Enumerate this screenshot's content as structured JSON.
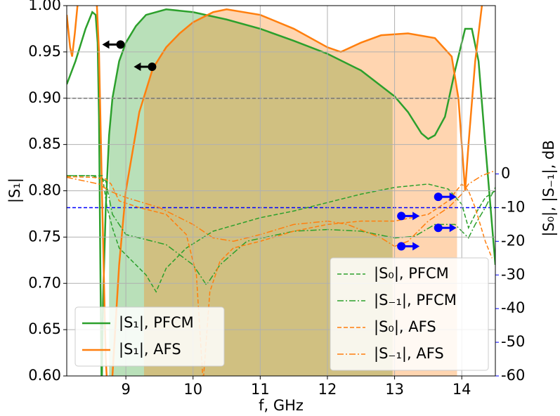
{
  "chart_data": {
    "type": "line",
    "x_label": "f, GHz",
    "y_label": "|S₁|",
    "y2_label": "|S₀|, |S₋₁|, dB",
    "xlim": [
      8.12,
      14.5
    ],
    "ylim": [
      0.6,
      1.0
    ],
    "y2lim": [
      -60,
      50
    ],
    "xticks": [
      9,
      10,
      11,
      12,
      13,
      14
    ],
    "yticks": [
      {
        "value": 0.6,
        "label": "0.60"
      },
      {
        "value": 0.65,
        "label": "0.65"
      },
      {
        "value": 0.7,
        "label": "0.70"
      },
      {
        "value": 0.75,
        "label": "0.75"
      },
      {
        "value": 0.8,
        "label": "0.80"
      },
      {
        "value": 0.85,
        "label": "0.85"
      },
      {
        "value": 0.9,
        "label": "0.90"
      },
      {
        "value": 0.95,
        "label": "0.95"
      },
      {
        "value": 1.0,
        "label": "1.00"
      }
    ],
    "y2ticks": [
      -60,
      -50,
      -40,
      -30,
      -20,
      -10,
      0
    ],
    "y2_color": "#0000ff",
    "grid": true,
    "hlines": [
      {
        "value": 0.9,
        "color": "#000000"
      },
      {
        "value": -10,
        "axis": "y2",
        "color": "#0000ff"
      }
    ],
    "series": [
      {
        "name": "|S₁|, PFCM",
        "color": "#2ca02c",
        "linestyle": "solid",
        "fill_x": [
          8.75,
          12.97
        ],
        "x": [
          8.12,
          8.25,
          8.4,
          8.5,
          8.55,
          8.58,
          8.6,
          8.62,
          8.64,
          8.66,
          8.7,
          8.75,
          8.8,
          8.9,
          9.0,
          9.15,
          9.3,
          9.6,
          10,
          10.5,
          11,
          11.5,
          12,
          12.5,
          13,
          13.2,
          13.4,
          13.5,
          13.6,
          13.75,
          13.9,
          14.05,
          14.15,
          14.25,
          14.35,
          14.5
        ],
        "values": [
          0.915,
          0.94,
          0.975,
          0.993,
          0.99,
          0.96,
          0.88,
          0.72,
          0.58,
          0.68,
          0.78,
          0.86,
          0.9,
          0.94,
          0.96,
          0.978,
          0.99,
          0.996,
          0.993,
          0.985,
          0.975,
          0.962,
          0.948,
          0.93,
          0.902,
          0.885,
          0.862,
          0.856,
          0.86,
          0.88,
          0.93,
          0.975,
          0.975,
          0.94,
          0.85,
          0.72
        ]
      },
      {
        "name": "|S₁|, AFS",
        "color": "#ff7f0e",
        "linestyle": "solid",
        "fill_x": [
          9.27,
          13.93
        ],
        "x": [
          8.12,
          8.17,
          8.2,
          8.24,
          8.28,
          8.32,
          8.55,
          8.6,
          8.65,
          8.7,
          8.75,
          8.8,
          8.9,
          9.0,
          9.2,
          9.4,
          9.6,
          9.8,
          10,
          10.3,
          10.5,
          11,
          11.5,
          12,
          12.2,
          12.5,
          12.8,
          13.2,
          13.6,
          13.85,
          13.95,
          14.0,
          14.05,
          14.1,
          14.2,
          14.3,
          14.4
        ],
        "values": [
          0.99,
          0.955,
          0.945,
          0.97,
          1.0,
          1.03,
          1.03,
          0.95,
          0.78,
          0.62,
          0.55,
          0.6,
          0.72,
          0.8,
          0.885,
          0.932,
          0.955,
          0.97,
          0.982,
          0.993,
          0.996,
          0.99,
          0.975,
          0.955,
          0.95,
          0.96,
          0.968,
          0.97,
          0.965,
          0.945,
          0.9,
          0.85,
          0.8,
          0.85,
          0.94,
          1.0,
          1.05
        ]
      },
      {
        "name": "|S₀|, PFCM",
        "color": "#2ca02c",
        "linestyle": "dashed",
        "axis": "y2",
        "x": [
          8.12,
          8.4,
          8.65,
          8.72,
          8.8,
          8.9,
          9.1,
          9.3,
          9.45,
          9.6,
          9.9,
          10.3,
          11,
          11.5,
          12,
          12.5,
          13,
          13.5,
          13.8,
          14.0,
          14.1,
          14.2,
          14.35,
          14.5
        ],
        "values": [
          -0.5,
          -0.5,
          -0.5,
          -10,
          -16,
          -22,
          -26,
          -30,
          -35,
          -28,
          -22,
          -17,
          -13,
          -11,
          -8.5,
          -6,
          -4,
          -3,
          -4.5,
          -9,
          -16,
          -12,
          -7,
          -5
        ]
      },
      {
        "name": "|S₋₁|, PFCM",
        "color": "#2ca02c",
        "linestyle": "dashdot",
        "axis": "y2",
        "x": [
          8.12,
          8.5,
          8.7,
          8.8,
          9.0,
          9.3,
          9.6,
          10.0,
          10.2,
          10.4,
          10.8,
          11.5,
          12,
          12.5,
          13,
          13.3,
          13.6,
          13.9,
          14.0,
          14.1,
          14.2,
          14.35,
          14.5
        ],
        "values": [
          -0.5,
          -0.5,
          -2,
          -12,
          -18,
          -19.5,
          -21,
          -27,
          -33,
          -27,
          -20,
          -17,
          -16.5,
          -17,
          -19,
          -18.5,
          -15,
          -15,
          -17,
          -19,
          -15,
          -10,
          -4
        ]
      },
      {
        "name": "|S₀|, AFS",
        "color": "#ff7f0e",
        "linestyle": "dashed",
        "axis": "y2",
        "x": [
          8.12,
          8.5,
          8.7,
          8.78,
          8.9,
          9.2,
          9.6,
          9.9,
          10.05,
          10.15,
          10.25,
          10.4,
          10.6,
          11,
          11.5,
          12,
          12.5,
          13,
          13.5,
          13.8,
          14.0,
          14.1,
          14.2,
          14.35,
          14.45
        ],
        "values": [
          -0.8,
          -1,
          -1.5,
          -3,
          -8,
          -10,
          -12,
          -18,
          -30,
          -62,
          -35,
          -26,
          -22,
          -20,
          -17,
          -15,
          -14,
          -14,
          -12,
          -8,
          -3,
          -5,
          -10,
          -20,
          -25
        ]
      },
      {
        "name": "|S₋₁|, AFS",
        "color": "#ff7f0e",
        "linestyle": "dashdot",
        "axis": "y2",
        "x": [
          8.12,
          8.6,
          8.75,
          9.0,
          9.5,
          10,
          10.3,
          10.6,
          11,
          11.5,
          12,
          12.3,
          12.8,
          13.0,
          13.2,
          13.5,
          13.8,
          14.0,
          14.1,
          14.3,
          14.5
        ],
        "values": [
          -1,
          -3,
          -5,
          -7,
          -10,
          -15,
          -19,
          -20,
          -18,
          -15,
          -14,
          -15,
          -19,
          -21.5,
          -20,
          -14,
          -10,
          -6,
          -3,
          -0.5,
          1
        ]
      }
    ],
    "markers": [
      {
        "x": 8.92,
        "y": 0.958,
        "direction": "left",
        "color": "#000000"
      },
      {
        "x": 9.39,
        "y": 0.934,
        "direction": "left",
        "color": "#000000"
      },
      {
        "x": 13.1,
        "y": -12.5,
        "direction": "right",
        "color": "#0000ff",
        "axis": "y2"
      },
      {
        "x": 13.1,
        "y": -21.5,
        "direction": "right",
        "color": "#0000ff",
        "axis": "y2"
      },
      {
        "x": 13.65,
        "y": -6.8,
        "direction": "right",
        "color": "#0000ff",
        "axis": "y2"
      },
      {
        "x": 13.65,
        "y": -16,
        "direction": "right",
        "color": "#0000ff",
        "axis": "y2"
      }
    ]
  }
}
